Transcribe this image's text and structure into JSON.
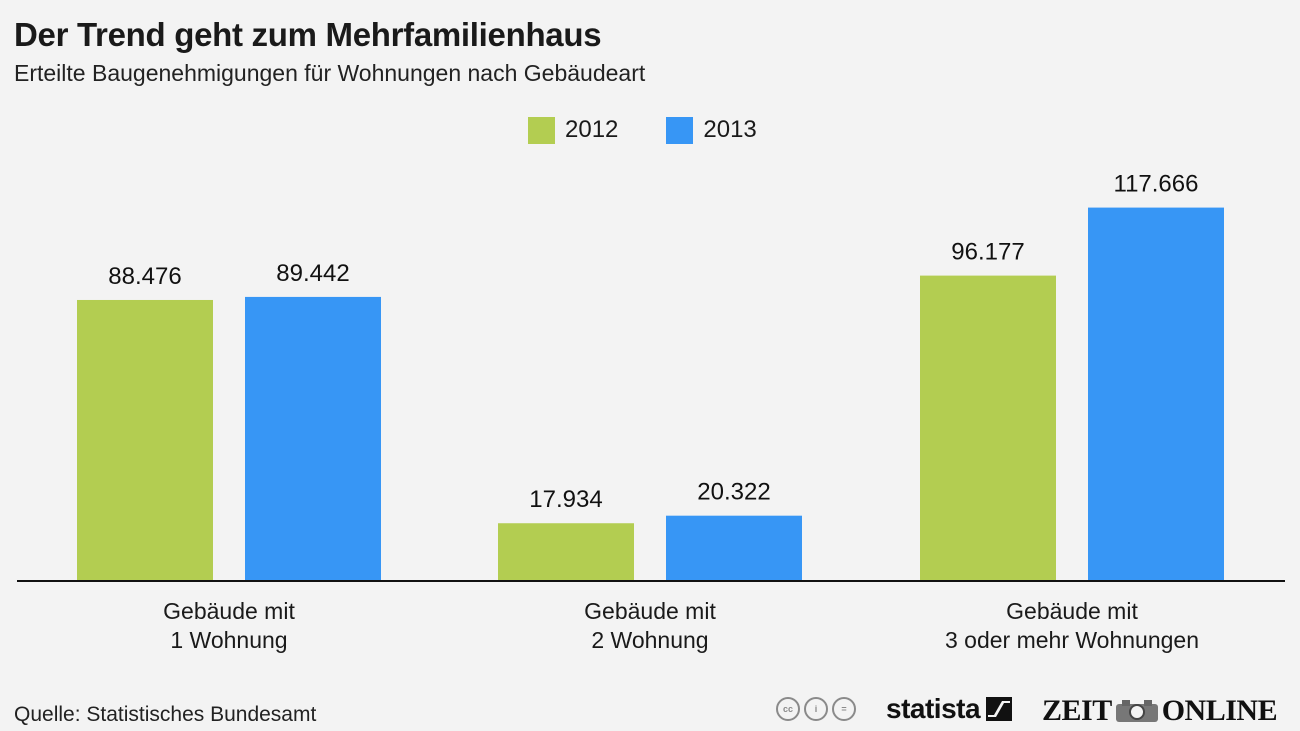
{
  "header": {
    "title": "Der Trend geht zum Mehrfamilienhaus",
    "subtitle": "Erteilte Baugenehmigungen für Wohnungen nach Gebäudeart"
  },
  "footer": {
    "source": "Quelle: Statistisches Bundesamt",
    "cc_icons": [
      "cc-icon",
      "by-icon",
      "nd-icon"
    ],
    "cc_labels": [
      "cc",
      "i",
      "="
    ],
    "statista_logo": "statista",
    "zeit_logo_left": "ZEIT",
    "zeit_logo_right": "ONLINE"
  },
  "chart_data": {
    "type": "bar",
    "title": "Der Trend geht zum Mehrfamilienhaus",
    "subtitle": "Erteilte Baugenehmigungen für Wohnungen nach Gebäudeart",
    "xlabel": "",
    "ylabel": "",
    "ylim": [
      0,
      125
    ],
    "grid": false,
    "legend_position": "top-center",
    "categories": [
      [
        "Gebäude mit",
        "1 Wohnung"
      ],
      [
        "Gebäude mit",
        "2 Wohnung"
      ],
      [
        "Gebäude mit",
        "3 oder mehr Wohnungen"
      ]
    ],
    "series": [
      {
        "name": "2012",
        "color": "#b3cd51",
        "values": [
          88476,
          17934,
          96177
        ],
        "labels": [
          "88.476",
          "17.934",
          "96.177"
        ]
      },
      {
        "name": "2013",
        "color": "#3796f5",
        "values": [
          89442,
          20322,
          117666
        ],
        "labels": [
          "89.442",
          "20.322",
          "117.666"
        ]
      }
    ]
  }
}
